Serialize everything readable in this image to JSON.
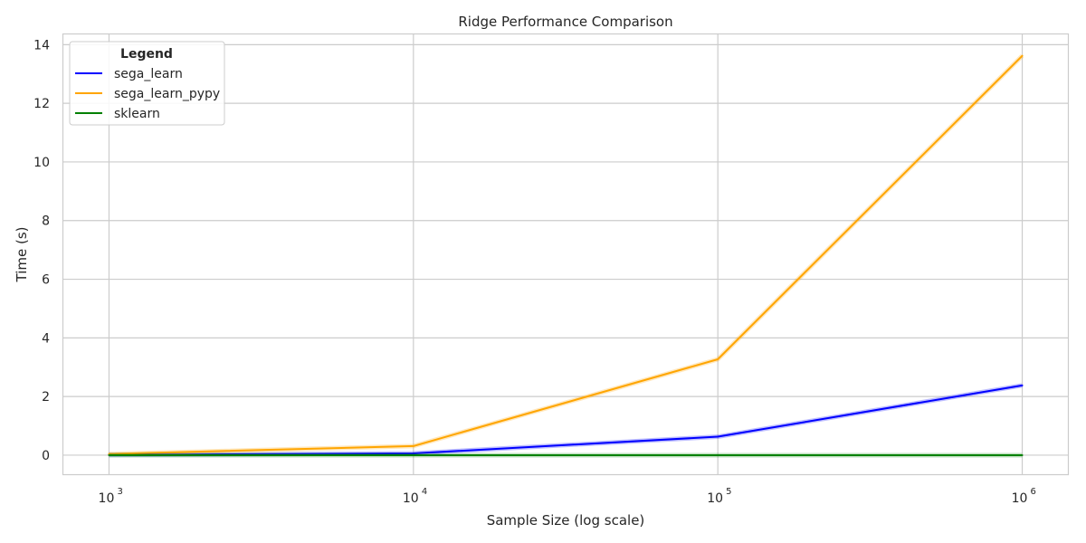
{
  "chart_data": {
    "type": "line",
    "title": "Ridge Performance Comparison",
    "xlabel": "Sample Size (log scale)",
    "ylabel": "Time (s)",
    "x_scale": "log",
    "x": [
      1000,
      10000,
      100000,
      1000000
    ],
    "x_ticks": [
      {
        "value": 1000,
        "base": "10",
        "exp": "3"
      },
      {
        "value": 10000,
        "base": "10",
        "exp": "4"
      },
      {
        "value": 100000,
        "base": "10",
        "exp": "5"
      },
      {
        "value": 1000000,
        "base": "10",
        "exp": "6"
      }
    ],
    "y_ticks": [
      "0",
      "2",
      "4",
      "6",
      "8",
      "10",
      "12",
      "14"
    ],
    "ylim": [
      -0.65,
      14.35
    ],
    "grid": true,
    "legend": {
      "title": "Legend",
      "placement": "top-left"
    },
    "series": [
      {
        "name": "sega_learn",
        "color": "#0000ff",
        "values": [
          0.01,
          0.06,
          0.63,
          2.38
        ]
      },
      {
        "name": "sega_learn_pypy",
        "color": "#ffa500",
        "values": [
          0.04,
          0.31,
          3.27,
          13.62
        ]
      },
      {
        "name": "sklearn",
        "color": "#008000",
        "values": [
          0.0,
          0.0,
          0.0,
          0.0
        ]
      }
    ]
  }
}
